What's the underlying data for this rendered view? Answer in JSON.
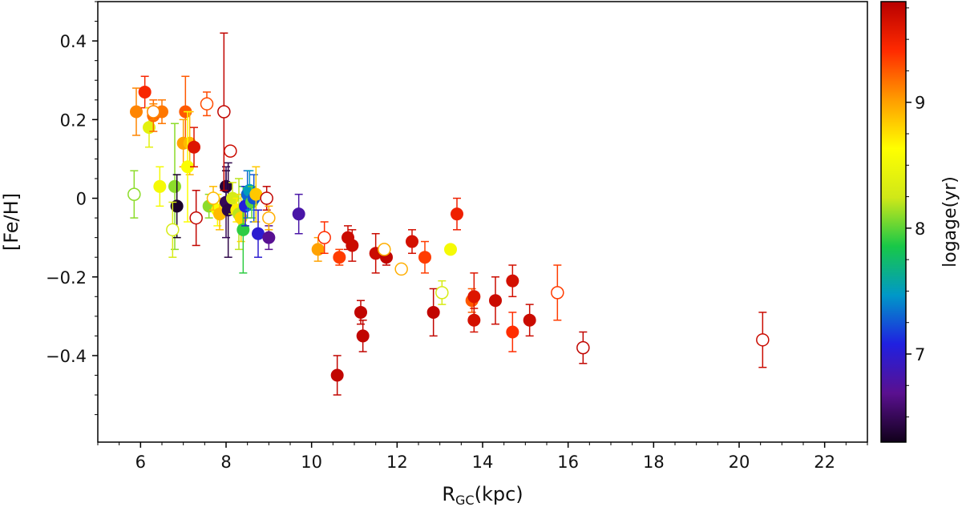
{
  "chart_data": {
    "type": "scatter",
    "title": "",
    "xlabel_main": "R",
    "xlabel_sub": "GC",
    "xlabel_unit": "(kpc)",
    "ylabel": "[Fe/H]",
    "xlim": [
      5,
      23
    ],
    "ylim": [
      -0.62,
      0.5
    ],
    "x_ticks": [
      6,
      8,
      10,
      12,
      14,
      16,
      18,
      20,
      22
    ],
    "x_tick_labels": [
      "6",
      "8",
      "10",
      "12",
      "14",
      "16",
      "18",
      "20",
      "22"
    ],
    "y_ticks": [
      0.4,
      0.2,
      0,
      -0.2,
      -0.4
    ],
    "y_tick_labels": [
      "0.4",
      "0.2",
      "0",
      "−0.2",
      "−0.4"
    ],
    "grid": false,
    "colorbar": {
      "label": "logage(yr)",
      "range": [
        6.3,
        9.8
      ],
      "ticks": [
        7,
        8,
        9
      ],
      "tick_labels": [
        "7",
        "8",
        "9"
      ],
      "colors": [
        "#10001a",
        "#5a1090",
        "#2020e0",
        "#0098c8",
        "#18c848",
        "#d0e818",
        "#ffff00",
        "#ff9c00",
        "#ff2a00",
        "#b80000"
      ]
    },
    "series": [
      {
        "name": "filled",
        "marker": "filled-circle",
        "points": [
          {
            "x": 5.9,
            "y": 0.22,
            "err": 0.06,
            "logage": 9.1
          },
          {
            "x": 6.1,
            "y": 0.27,
            "err": 0.04,
            "logage": 9.45
          },
          {
            "x": 6.2,
            "y": 0.18,
            "err": 0.05,
            "logage": 8.4
          },
          {
            "x": 6.3,
            "y": 0.21,
            "err": 0.04,
            "logage": 9.2
          },
          {
            "x": 6.5,
            "y": 0.22,
            "err": 0.03,
            "logage": 9.15
          },
          {
            "x": 6.45,
            "y": 0.03,
            "err": 0.05,
            "logage": 8.55
          },
          {
            "x": 6.8,
            "y": 0.03,
            "err": 0.16,
            "logage": 8.1
          },
          {
            "x": 6.85,
            "y": -0.02,
            "err": 0.08,
            "logage": 6.35
          },
          {
            "x": 7.05,
            "y": 0.22,
            "err": 0.09,
            "logage": 9.25
          },
          {
            "x": 7.0,
            "y": 0.14,
            "err": 0.06,
            "logage": 9.0
          },
          {
            "x": 7.15,
            "y": 0.14,
            "err": 0.08,
            "logage": 8.9
          },
          {
            "x": 7.1,
            "y": 0.08,
            "err": 0.14,
            "logage": 8.6
          },
          {
            "x": 7.25,
            "y": 0.13,
            "err": 0.05,
            "logage": 9.6
          },
          {
            "x": 7.6,
            "y": -0.02,
            "err": 0.03,
            "logage": 8.1
          },
          {
            "x": 7.8,
            "y": -0.03,
            "err": 0.04,
            "logage": 8.6
          },
          {
            "x": 7.85,
            "y": -0.04,
            "err": 0.04,
            "logage": 8.9
          },
          {
            "x": 8.0,
            "y": 0.03,
            "err": 0.04,
            "logage": 6.4
          },
          {
            "x": 8.0,
            "y": -0.01,
            "err": 0.09,
            "logage": 6.5
          },
          {
            "x": 8.05,
            "y": -0.03,
            "err": 0.12,
            "logage": 6.45
          },
          {
            "x": 8.15,
            "y": 0.0,
            "err": 0.04,
            "logage": 8.3
          },
          {
            "x": 8.25,
            "y": -0.03,
            "err": 0.03,
            "logage": 8.7
          },
          {
            "x": 8.3,
            "y": -0.04,
            "err": 0.09,
            "logage": 8.2
          },
          {
            "x": 8.35,
            "y": -0.05,
            "err": 0.06,
            "logage": 8.8
          },
          {
            "x": 8.4,
            "y": -0.08,
            "err": 0.11,
            "logage": 7.9
          },
          {
            "x": 8.45,
            "y": -0.02,
            "err": 0.05,
            "logage": 7.05
          },
          {
            "x": 8.5,
            "y": 0.01,
            "err": 0.06,
            "logage": 7.3
          },
          {
            "x": 8.55,
            "y": 0.02,
            "err": 0.05,
            "logage": 7.5
          },
          {
            "x": 8.6,
            "y": -0.01,
            "err": 0.04,
            "logage": 8.0
          },
          {
            "x": 8.65,
            "y": 0.0,
            "err": 0.06,
            "logage": 7.25
          },
          {
            "x": 8.7,
            "y": 0.01,
            "err": 0.07,
            "logage": 8.85
          },
          {
            "x": 8.75,
            "y": -0.09,
            "err": 0.06,
            "logage": 7.0
          },
          {
            "x": 9.0,
            "y": -0.1,
            "err": 0.03,
            "logage": 6.7
          },
          {
            "x": 9.7,
            "y": -0.04,
            "err": 0.05,
            "logage": 6.8
          },
          {
            "x": 10.15,
            "y": -0.13,
            "err": 0.03,
            "logage": 9.0
          },
          {
            "x": 10.65,
            "y": -0.15,
            "err": 0.02,
            "logage": 9.35
          },
          {
            "x": 10.6,
            "y": -0.45,
            "err": 0.05,
            "logage": 9.75
          },
          {
            "x": 10.85,
            "y": -0.1,
            "err": 0.03,
            "logage": 9.7
          },
          {
            "x": 10.95,
            "y": -0.12,
            "err": 0.04,
            "logage": 9.7
          },
          {
            "x": 11.15,
            "y": -0.29,
            "err": 0.03,
            "logage": 9.75
          },
          {
            "x": 11.2,
            "y": -0.35,
            "err": 0.04,
            "logage": 9.75
          },
          {
            "x": 11.5,
            "y": -0.14,
            "err": 0.05,
            "logage": 9.7
          },
          {
            "x": 11.75,
            "y": -0.15,
            "err": 0.02,
            "logage": 9.75
          },
          {
            "x": 12.35,
            "y": -0.11,
            "err": 0.03,
            "logage": 9.65
          },
          {
            "x": 12.65,
            "y": -0.15,
            "err": 0.04,
            "logage": 9.35
          },
          {
            "x": 12.85,
            "y": -0.29,
            "err": 0.06,
            "logage": 9.75
          },
          {
            "x": 13.25,
            "y": -0.13,
            "err": 0.0,
            "logage": 8.55
          },
          {
            "x": 13.4,
            "y": -0.04,
            "err": 0.04,
            "logage": 9.5
          },
          {
            "x": 13.75,
            "y": -0.26,
            "err": 0.03,
            "logage": 9.25
          },
          {
            "x": 13.8,
            "y": -0.25,
            "err": 0.06,
            "logage": 9.6
          },
          {
            "x": 13.8,
            "y": -0.31,
            "err": 0.03,
            "logage": 9.65
          },
          {
            "x": 14.3,
            "y": -0.26,
            "err": 0.06,
            "logage": 9.7
          },
          {
            "x": 14.7,
            "y": -0.21,
            "err": 0.04,
            "logage": 9.65
          },
          {
            "x": 14.7,
            "y": -0.34,
            "err": 0.05,
            "logage": 9.4
          },
          {
            "x": 15.1,
            "y": -0.31,
            "err": 0.04,
            "logage": 9.7
          }
        ]
      },
      {
        "name": "open",
        "marker": "open-circle",
        "points": [
          {
            "x": 5.85,
            "y": 0.01,
            "err": 0.06,
            "logage": 8.1
          },
          {
            "x": 6.3,
            "y": 0.22,
            "err": 0.02,
            "logage": 9.1
          },
          {
            "x": 6.75,
            "y": -0.08,
            "err": 0.07,
            "logage": 8.3
          },
          {
            "x": 7.3,
            "y": -0.05,
            "err": 0.07,
            "logage": 9.75
          },
          {
            "x": 7.55,
            "y": 0.24,
            "err": 0.03,
            "logage": 9.3
          },
          {
            "x": 7.7,
            "y": 0.0,
            "err": 0.03,
            "logage": 8.9
          },
          {
            "x": 7.95,
            "y": 0.22,
            "err": 0.2,
            "logage": 9.75
          },
          {
            "x": 8.1,
            "y": 0.12,
            "err": 0.01,
            "logage": 9.7
          },
          {
            "x": 8.95,
            "y": 0.0,
            "err": 0.03,
            "logage": 9.75
          },
          {
            "x": 9.0,
            "y": -0.05,
            "err": 0.03,
            "logage": 8.95
          },
          {
            "x": 10.3,
            "y": -0.1,
            "err": 0.04,
            "logage": 9.4
          },
          {
            "x": 11.7,
            "y": -0.13,
            "err": 0.01,
            "logage": 8.95
          },
          {
            "x": 12.1,
            "y": -0.18,
            "err": 0.01,
            "logage": 8.95
          },
          {
            "x": 13.05,
            "y": -0.24,
            "err": 0.03,
            "logage": 8.3
          },
          {
            "x": 15.75,
            "y": -0.24,
            "err": 0.07,
            "logage": 9.35
          },
          {
            "x": 16.35,
            "y": -0.38,
            "err": 0.04,
            "logage": 9.75
          },
          {
            "x": 20.55,
            "y": -0.36,
            "err": 0.07,
            "logage": 9.7
          }
        ]
      }
    ]
  }
}
